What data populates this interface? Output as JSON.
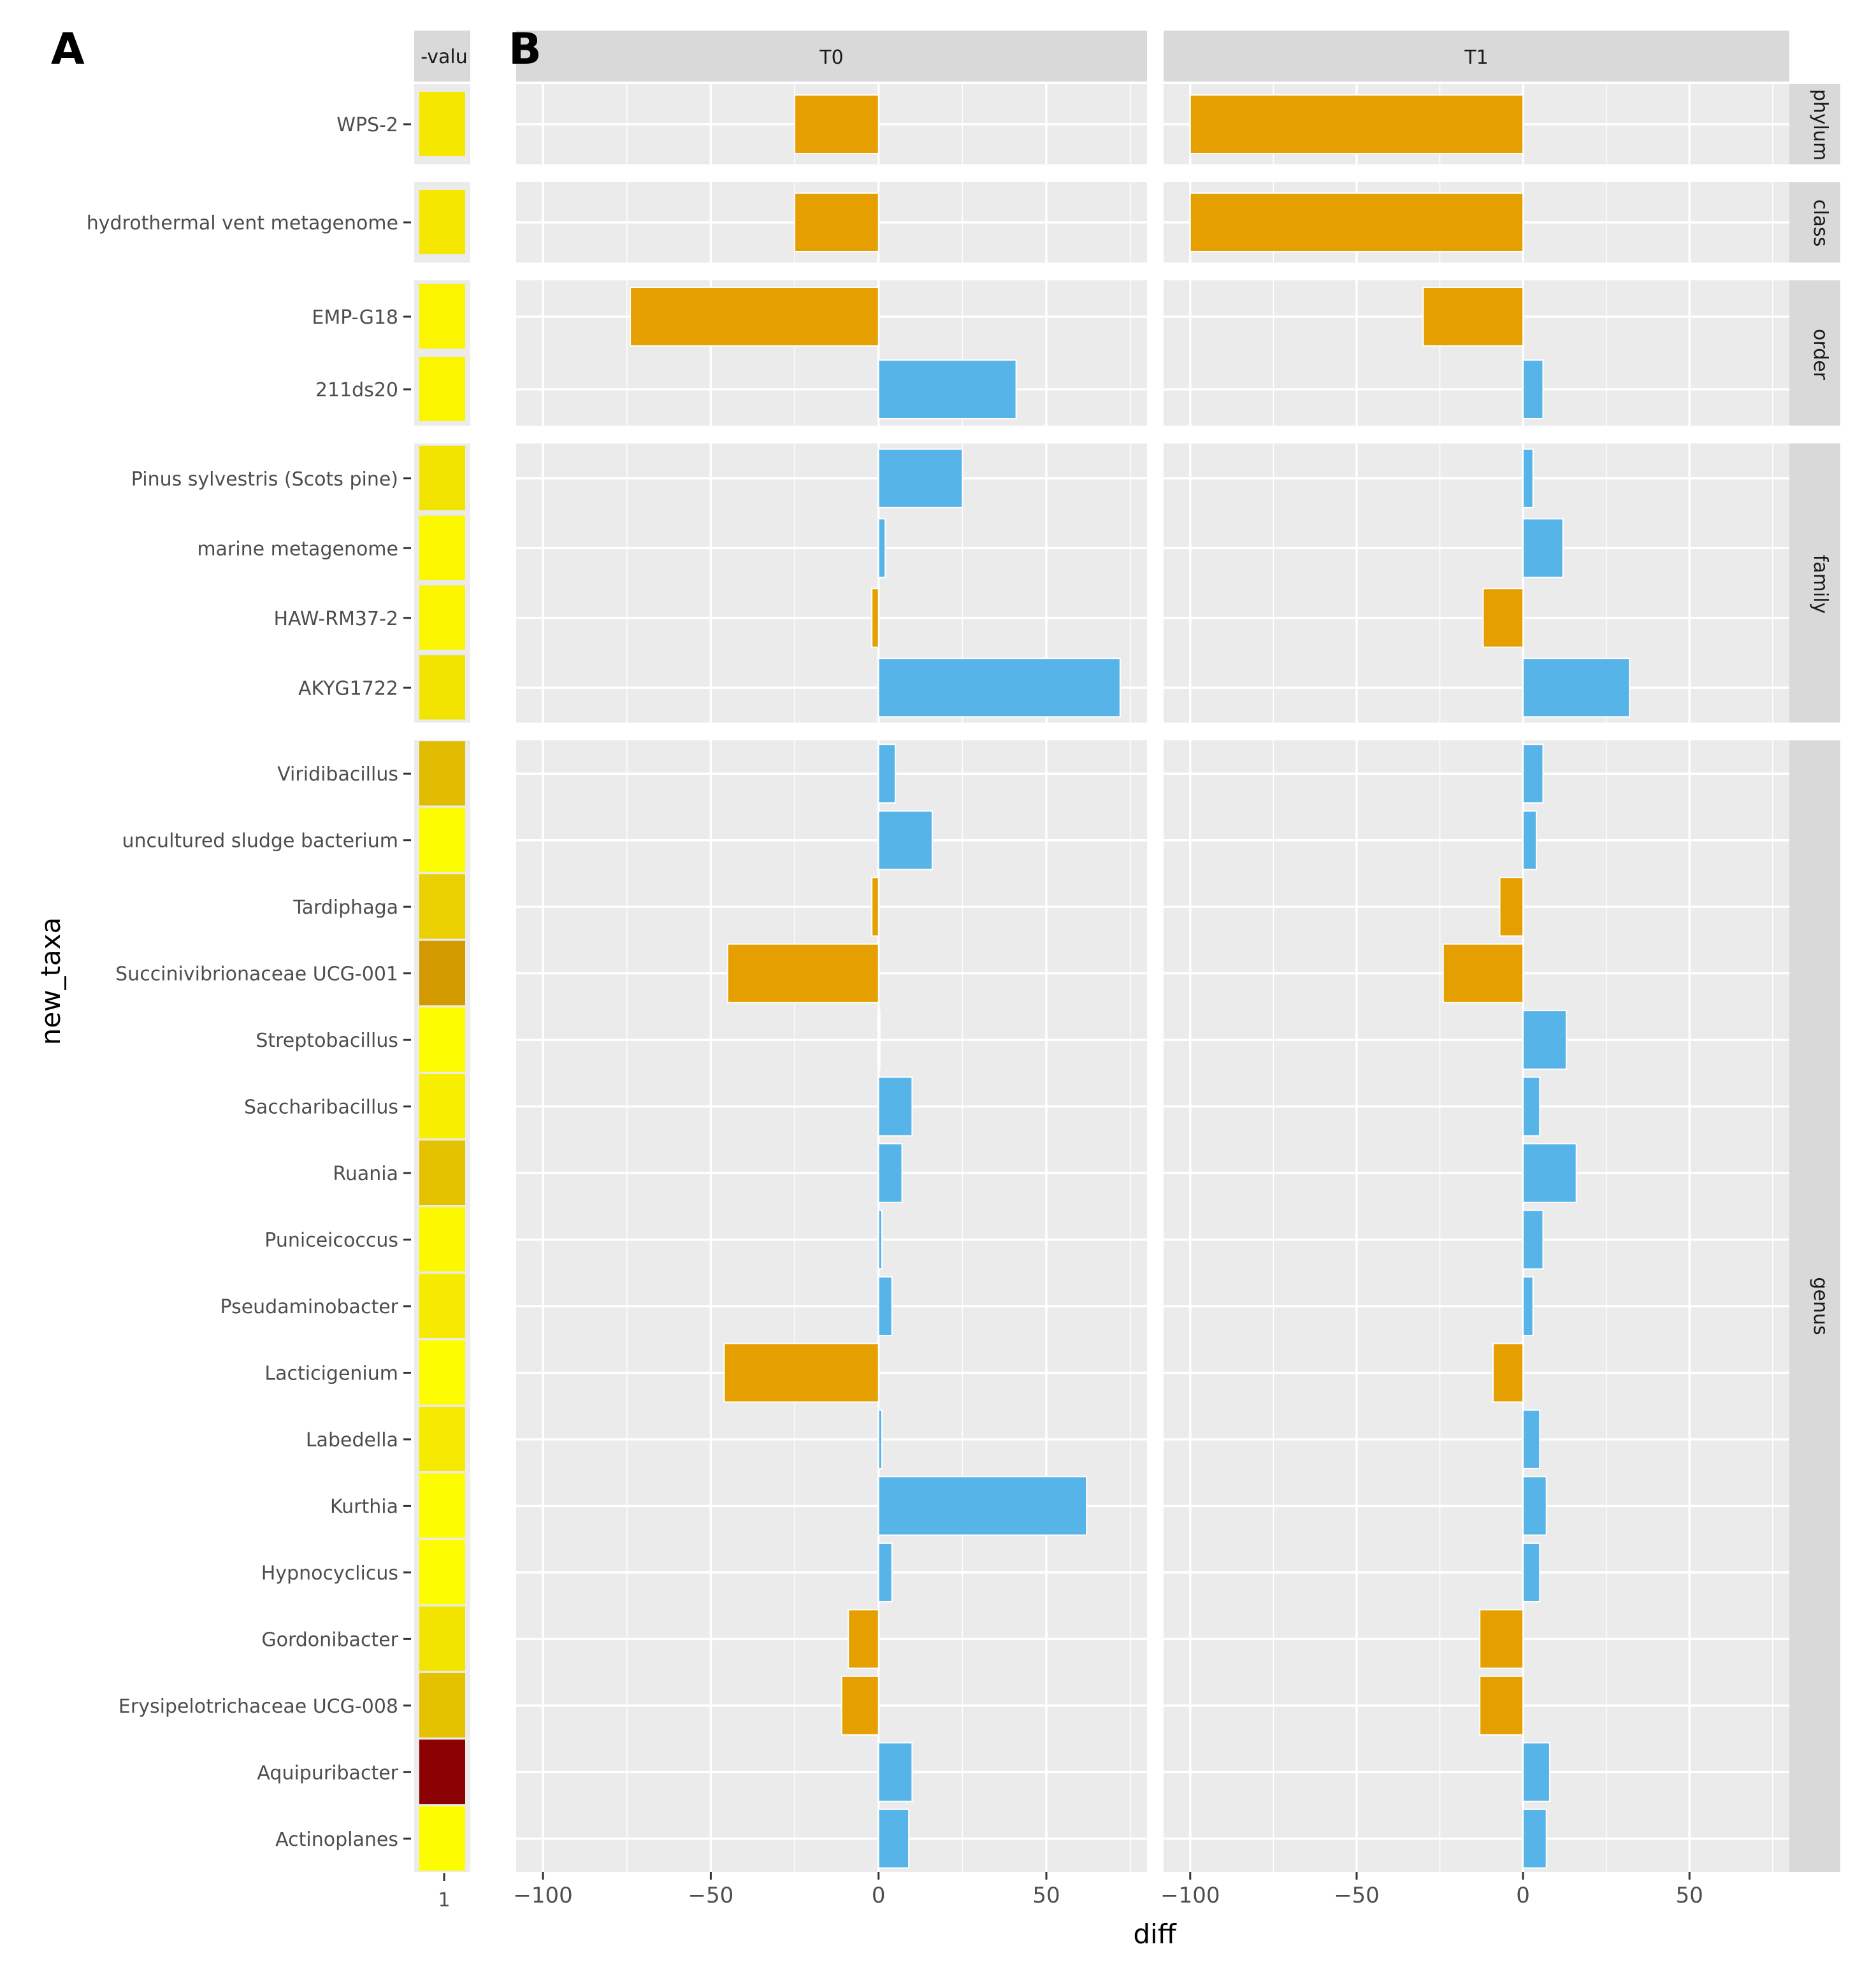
{
  "panel_labels": {
    "a": "A",
    "b": "B"
  },
  "colors": {
    "negative": "#E69F00",
    "positive": "#56B4E9",
    "panel_bg": "#EBEBEB",
    "strip_bg": "#D9D9D9",
    "grid": "#FFFFFF",
    "heat_low": "#FFFF00",
    "heat_mid": "#D39A00",
    "heat_high": "#8B0000"
  },
  "chart_data": [
    {
      "type": "heatmap",
      "column_strip": "-valu",
      "x_tick_labels": [
        "1"
      ],
      "ylabel": "new_taxa",
      "facets": [
        "phylum",
        "class",
        "order",
        "family",
        "genus"
      ],
      "rows": [
        {
          "taxon": "WPS-2",
          "rank": "phylum",
          "value": 0.07
        },
        {
          "taxon": "hydrothermal vent metagenome",
          "rank": "class",
          "value": 0.07
        },
        {
          "taxon": "EMP-G18",
          "rank": "order",
          "value": 0.03
        },
        {
          "taxon": "211ds20",
          "rank": "order",
          "value": 0.03
        },
        {
          "taxon": "Pinus sylvestris (Scots pine)",
          "rank": "family",
          "value": 0.08
        },
        {
          "taxon": "marine metagenome",
          "rank": "family",
          "value": 0.02
        },
        {
          "taxon": "HAW-RM37-2",
          "rank": "family",
          "value": 0.03
        },
        {
          "taxon": "AKYG1722",
          "rank": "family",
          "value": 0.08
        },
        {
          "taxon": "Viridibacillus",
          "rank": "genus",
          "value": 0.2
        },
        {
          "taxon": "uncultured sludge bacterium",
          "rank": "genus",
          "value": 0.01
        },
        {
          "taxon": "Tardiphaga",
          "rank": "genus",
          "value": 0.14
        },
        {
          "taxon": "Succinivibrionaceae UCG-001",
          "rank": "genus",
          "value": 0.3
        },
        {
          "taxon": "Streptobacillus",
          "rank": "genus",
          "value": 0.01
        },
        {
          "taxon": "Saccharibacillus",
          "rank": "genus",
          "value": 0.05
        },
        {
          "taxon": "Ruania",
          "rank": "genus",
          "value": 0.18
        },
        {
          "taxon": "Puniceicoccus",
          "rank": "genus",
          "value": 0.02
        },
        {
          "taxon": "Pseudaminobacter",
          "rank": "genus",
          "value": 0.06
        },
        {
          "taxon": "Lacticigenium",
          "rank": "genus",
          "value": 0.01
        },
        {
          "taxon": "Labedella",
          "rank": "genus",
          "value": 0.06
        },
        {
          "taxon": "Kurthia",
          "rank": "genus",
          "value": 0.01
        },
        {
          "taxon": "Hypnocyclicus",
          "rank": "genus",
          "value": 0.01
        },
        {
          "taxon": "Gordonibacter",
          "rank": "genus",
          "value": 0.08
        },
        {
          "taxon": "Erysipelotrichaceae UCG-008",
          "rank": "genus",
          "value": 0.18
        },
        {
          "taxon": "Aquipuribacter",
          "rank": "genus",
          "value": 1.0
        },
        {
          "taxon": "Actinoplanes",
          "rank": "genus",
          "value": 0.01
        }
      ]
    },
    {
      "type": "bar",
      "orientation": "horizontal",
      "xlabel": "diff",
      "xlim": [
        -108,
        80
      ],
      "x_ticks": [
        -100,
        -50,
        0,
        50
      ],
      "x_tick_labels": [
        "−100",
        "−50",
        "0",
        "50"
      ],
      "grid": true,
      "columns": [
        "T0",
        "T1"
      ],
      "facets": [
        "phylum",
        "class",
        "order",
        "family",
        "genus"
      ],
      "categories": [
        "WPS-2",
        "hydrothermal vent metagenome",
        "EMP-G18",
        "211ds20",
        "Pinus sylvestris (Scots pine)",
        "marine metagenome",
        "HAW-RM37-2",
        "AKYG1722",
        "Viridibacillus",
        "uncultured sludge bacterium",
        "Tardiphaga",
        "Succinivibrionaceae UCG-001",
        "Streptobacillus",
        "Saccharibacillus",
        "Ruania",
        "Puniceicoccus",
        "Pseudaminobacter",
        "Lacticigenium",
        "Labedella",
        "Kurthia",
        "Hypnocyclicus",
        "Gordonibacter",
        "Erysipelotrichaceae UCG-008",
        "Aquipuribacter",
        "Actinoplanes"
      ],
      "series": [
        {
          "name": "T0",
          "values": [
            -25,
            -25,
            -74,
            41,
            25,
            2,
            -2,
            72,
            5,
            16,
            -2,
            -45,
            0,
            10,
            7,
            1,
            4,
            -46,
            1,
            62,
            4,
            -9,
            -11,
            10,
            9
          ]
        },
        {
          "name": "T1",
          "values": [
            -100,
            -100,
            -30,
            6,
            3,
            12,
            -12,
            32,
            6,
            4,
            -7,
            -24,
            13,
            5,
            16,
            6,
            3,
            -9,
            5,
            7,
            5,
            -13,
            -13,
            8,
            7
          ]
        }
      ]
    }
  ]
}
